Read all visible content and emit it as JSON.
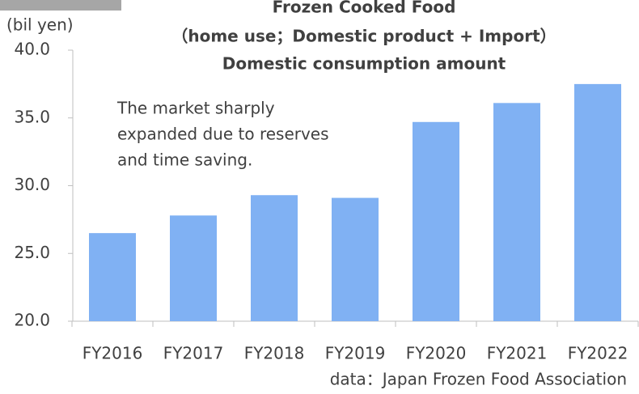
{
  "chart_data": {
    "type": "bar",
    "title": [
      "Frozen Cooked Food",
      "（home use；Domestic product + Import）",
      "Domestic consumption amount"
    ],
    "y_axis_label": "(bil yen)",
    "annotation": [
      "The market sharply",
      "expanded due to reserves",
      "and time saving."
    ],
    "source": "data：Japan Frozen Food Association",
    "categories": [
      "FY2016",
      "FY2017",
      "FY2018",
      "FY2019",
      "FY2020",
      "FY2021",
      "FY2022"
    ],
    "values": [
      26.5,
      27.8,
      29.3,
      29.1,
      34.7,
      36.1,
      37.5
    ],
    "color": "#80b1f3",
    "ylim": [
      20,
      40
    ],
    "yticks": [
      {
        "value": 20,
        "label": "20.0"
      },
      {
        "value": 25,
        "label": "25.0"
      },
      {
        "value": 30,
        "label": "30.0"
      },
      {
        "value": 35,
        "label": "35.0"
      },
      {
        "value": 40,
        "label": "40.0"
      }
    ],
    "grid": false
  }
}
